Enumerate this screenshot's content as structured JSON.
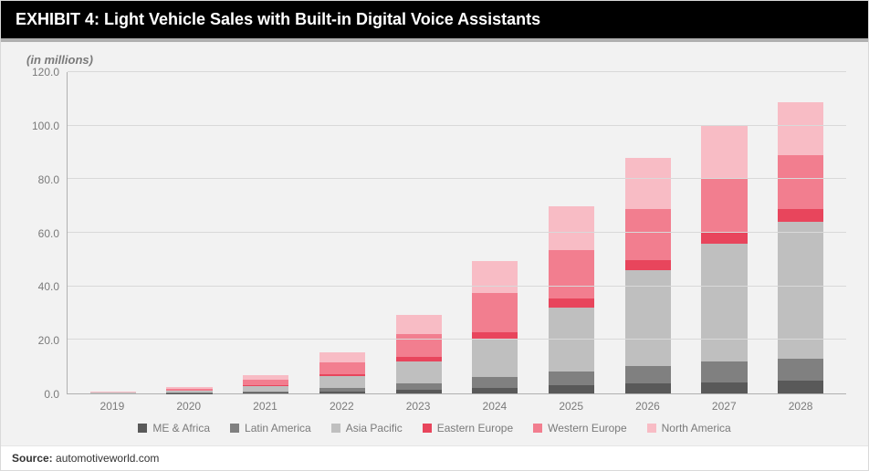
{
  "title": "EXHIBIT 4: Light Vehicle Sales with Built-in Digital Voice Assistants",
  "y_unit_label": "(in millions)",
  "source_label": "Source:",
  "source_value": "automotiveworld.com",
  "chart": {
    "type": "stacked-bar",
    "background_color": "#f2f2f2",
    "grid_color": "#d9d9d9",
    "axis_color": "#b0b0b0",
    "label_color": "#7a7a7a",
    "label_fontsize": 12,
    "title_fontsize": 18,
    "ylim": [
      0,
      120
    ],
    "ytick_step": 20,
    "yticks": [
      "0.0",
      "20.0",
      "40.0",
      "60.0",
      "80.0",
      "100.0",
      "120.0"
    ],
    "categories": [
      "2019",
      "2020",
      "2021",
      "2022",
      "2023",
      "2024",
      "2025",
      "2026",
      "2027",
      "2028"
    ],
    "series": [
      {
        "name": "ME & Africa",
        "color": "#595959"
      },
      {
        "name": "Latin America",
        "color": "#808080"
      },
      {
        "name": "Asia Pacific",
        "color": "#bfbfbf"
      },
      {
        "name": "Eastern Europe",
        "color": "#e8455c"
      },
      {
        "name": "Western Europe",
        "color": "#f27e8f"
      },
      {
        "name": "North America",
        "color": "#f8bcc5"
      }
    ],
    "values": [
      [
        0.0,
        0.0,
        0.2,
        0.0,
        0.2,
        0.2
      ],
      [
        0.1,
        0.2,
        0.6,
        0.1,
        0.8,
        0.7
      ],
      [
        0.3,
        0.5,
        2.0,
        0.4,
        2.0,
        1.8
      ],
      [
        0.7,
        1.2,
        4.5,
        0.9,
        4.4,
        3.6
      ],
      [
        1.4,
        2.4,
        8.2,
        1.6,
        8.6,
        7.0
      ],
      [
        2.2,
        3.8,
        14.5,
        2.4,
        14.5,
        12.0
      ],
      [
        3.0,
        5.2,
        24.0,
        3.2,
        18.2,
        16.2
      ],
      [
        3.6,
        6.5,
        36.0,
        3.8,
        19.0,
        19.0
      ],
      [
        4.2,
        7.6,
        44.0,
        4.4,
        20.0,
        20.0
      ],
      [
        4.7,
        8.4,
        51.0,
        4.8,
        20.0,
        20.0
      ]
    ],
    "bar_width_pct": 60
  }
}
